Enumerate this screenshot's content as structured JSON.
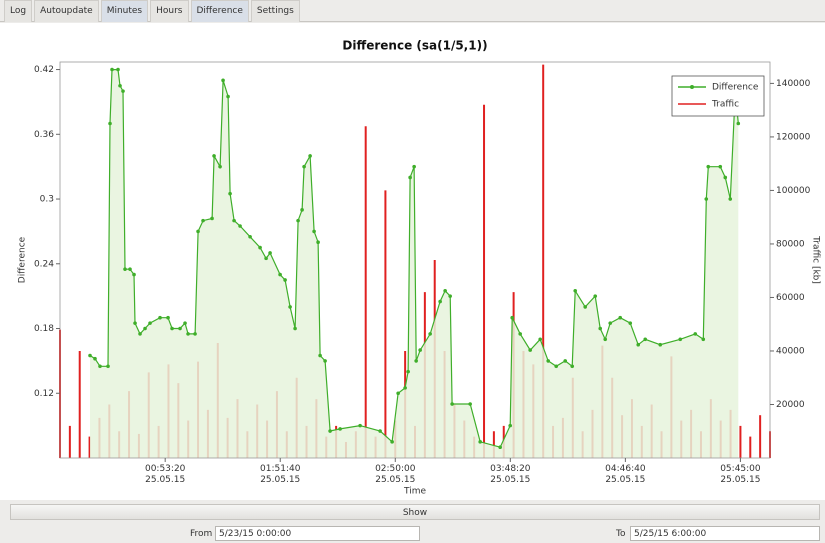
{
  "tabs": [
    "Log",
    "Autoupdate",
    "Minutes",
    "Hours",
    "Difference",
    "Settings"
  ],
  "chart_data": {
    "type": "line",
    "title": "Difference (sa(1/5,1))",
    "x_label": "Time",
    "y_label": "Difference",
    "y2_label": "Traffic [kb]",
    "xlim": [
      0,
      21600
    ],
    "xticks": [
      {
        "value": 3200,
        "label": "00:53:20\n25.05.15"
      },
      {
        "value": 6700,
        "label": "01:51:40\n25.05.15"
      },
      {
        "value": 10200,
        "label": "02:50:00\n25.05.15"
      },
      {
        "value": 13700,
        "label": "03:48:20\n25.05.15"
      },
      {
        "value": 17200,
        "label": "04:46:40\n25.05.15"
      },
      {
        "value": 20700,
        "label": "05:45:00\n25.05.15"
      }
    ],
    "ylim": [
      0.06,
      0.427
    ],
    "yticks": [
      0.12,
      0.18,
      0.24,
      0.3,
      0.36,
      0.42
    ],
    "y2lim": [
      0,
      148000
    ],
    "y2ticks": [
      20000,
      40000,
      60000,
      80000,
      100000,
      120000,
      140000
    ],
    "grid": false,
    "legend": "top-right",
    "series": [
      {
        "name": "Difference",
        "color": "#3fae2a",
        "fill": "#e6f3dc",
        "x": [
          913,
          1065,
          1217,
          1461,
          1522,
          1583,
          1765,
          1826,
          1917,
          1978,
          2130,
          2252,
          2283,
          2435,
          2587,
          2739,
          3043,
          3287,
          3409,
          3652,
          3804,
          3896,
          4109,
          4200,
          4352,
          4626,
          4687,
          4870,
          4961,
          5113,
          5174,
          5296,
          5478,
          5783,
          6087,
          6270,
          6391,
          6696,
          6848,
          7000,
          7152,
          7243,
          7365,
          7426,
          7609,
          7730,
          7852,
          7913,
          8065,
          8217,
          8522,
          9130,
          9739,
          10104,
          10287,
          10500,
          10591,
          10652,
          10774,
          10835,
          10957,
          11261,
          11565,
          11717,
          11870,
          11930,
          12478,
          12783,
          13391,
          13696,
          13757,
          14000,
          14304,
          14609,
          14852,
          15096,
          15370,
          15583,
          15674,
          15978,
          16283,
          16435,
          16587,
          16739,
          17043,
          17348,
          17591,
          17804,
          18261,
          18870,
          19326,
          19570,
          19661,
          19722,
          20087,
          20239,
          20391,
          20543,
          20635
        ],
        "values": [
          0.155,
          0.152,
          0.145,
          0.145,
          0.37,
          0.42,
          0.42,
          0.405,
          0.4,
          0.235,
          0.235,
          0.23,
          0.185,
          0.175,
          0.18,
          0.185,
          0.19,
          0.19,
          0.18,
          0.18,
          0.185,
          0.175,
          0.175,
          0.27,
          0.28,
          0.282,
          0.34,
          0.33,
          0.41,
          0.395,
          0.305,
          0.28,
          0.275,
          0.265,
          0.255,
          0.245,
          0.25,
          0.23,
          0.225,
          0.2,
          0.18,
          0.28,
          0.29,
          0.33,
          0.34,
          0.27,
          0.26,
          0.155,
          0.15,
          0.085,
          0.087,
          0.09,
          0.085,
          0.075,
          0.12,
          0.125,
          0.14,
          0.32,
          0.33,
          0.15,
          0.16,
          0.175,
          0.205,
          0.215,
          0.21,
          0.11,
          0.11,
          0.075,
          0.07,
          0.09,
          0.19,
          0.175,
          0.16,
          0.17,
          0.15,
          0.145,
          0.15,
          0.145,
          0.215,
          0.2,
          0.21,
          0.18,
          0.17,
          0.185,
          0.19,
          0.185,
          0.165,
          0.17,
          0.165,
          0.17,
          0.175,
          0.17,
          0.3,
          0.33,
          0.33,
          0.32,
          0.3,
          0.4,
          0.37
        ]
      },
      {
        "name": "Traffic",
        "color": "#e02020",
        "axis": "y2",
        "x": [
          0,
          300,
          600,
          900,
          1200,
          1500,
          1800,
          2100,
          2400,
          2700,
          3000,
          3300,
          3600,
          3900,
          4200,
          4500,
          4800,
          5100,
          5400,
          5700,
          6000,
          6300,
          6600,
          6900,
          7200,
          7500,
          7800,
          8100,
          8400,
          8700,
          9000,
          9300,
          9600,
          9900,
          10200,
          10500,
          10800,
          11100,
          11400,
          11700,
          12000,
          12300,
          12600,
          12900,
          13200,
          13500,
          13800,
          14100,
          14400,
          14700,
          15000,
          15300,
          15600,
          15900,
          16200,
          16500,
          16800,
          17100,
          17400,
          17700,
          18000,
          18300,
          18600,
          18900,
          19200,
          19500,
          19800,
          20100,
          20400,
          20700,
          21000,
          21300,
          21600
        ],
        "values": [
          48000,
          12000,
          40000,
          8000,
          15000,
          20000,
          10000,
          25000,
          9000,
          32000,
          12000,
          35000,
          28000,
          14000,
          36000,
          18000,
          43000,
          15000,
          22000,
          10000,
          20000,
          14000,
          25000,
          10000,
          30000,
          12000,
          22000,
          8000,
          12000,
          6000,
          10000,
          124000,
          8000,
          100000,
          14000,
          40000,
          12000,
          62000,
          74000,
          40000,
          20000,
          14000,
          8000,
          132000,
          10000,
          12000,
          62000,
          40000,
          35000,
          147000,
          12000,
          15000,
          30000,
          10000,
          18000,
          42000,
          30000,
          16000,
          22000,
          12000,
          20000,
          10000,
          38000,
          14000,
          18000,
          10000,
          22000,
          14000,
          18000,
          12000,
          8000,
          16000,
          10000
        ]
      }
    ]
  },
  "show_button": "Show",
  "from_label": "From",
  "from_value": "5/23/15 0:00:00",
  "to_label": "To",
  "to_value": "5/25/15 6:00:00"
}
